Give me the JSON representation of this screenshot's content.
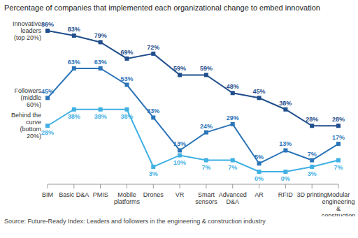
{
  "chart_data": {
    "type": "line",
    "title": "Percentage of companies that implemented each organizational change to embed innovation",
    "source": "Source: Future-Ready Index: Leaders and followers in the engineering & construction industry",
    "categories": [
      "BIM",
      "Basic D&A",
      "PMIS",
      "Mobile platforms",
      "Drones",
      "VR",
      "Smart sensors",
      "Advanced D&A",
      "AR",
      "RFID",
      "3D printing",
      "Modular engineering & construction"
    ],
    "series": [
      {
        "name": "Innovative leaders (top 20%)",
        "color": "#1f4e8c",
        "marker": "square",
        "values": [
          86,
          83,
          79,
          69,
          72,
          59,
          59,
          48,
          45,
          38,
          28,
          28
        ],
        "value_labels": [
          "86%",
          "83%",
          "79%",
          "69%",
          "72%",
          "59%",
          "59%",
          "48%",
          "45%",
          "38%",
          "28%",
          "28%"
        ]
      },
      {
        "name": "Followers (middle 60%)",
        "color": "#2b74b8",
        "marker": "square",
        "values": [
          45,
          63,
          63,
          53,
          33,
          13,
          24,
          29,
          5,
          13,
          7,
          17
        ],
        "value_labels": [
          "45%",
          "63%",
          "63%",
          "53%",
          "33%",
          "13%",
          "24%",
          "29%",
          "5%",
          "13%",
          "7%",
          "17%"
        ]
      },
      {
        "name": "Behind the curve (bottom 20%)",
        "color": "#3fb0e3",
        "marker": "square",
        "values": [
          28,
          38,
          38,
          38,
          3,
          10,
          7,
          7,
          0,
          0,
          3,
          7
        ],
        "value_labels": [
          "28%",
          "38%",
          "38%",
          "38%",
          "3%",
          "10%",
          "7%",
          "7%",
          "0%",
          "0%",
          "3%",
          "7%"
        ]
      }
    ],
    "data_labels": true,
    "tick_labels": "x",
    "grid": false
  }
}
